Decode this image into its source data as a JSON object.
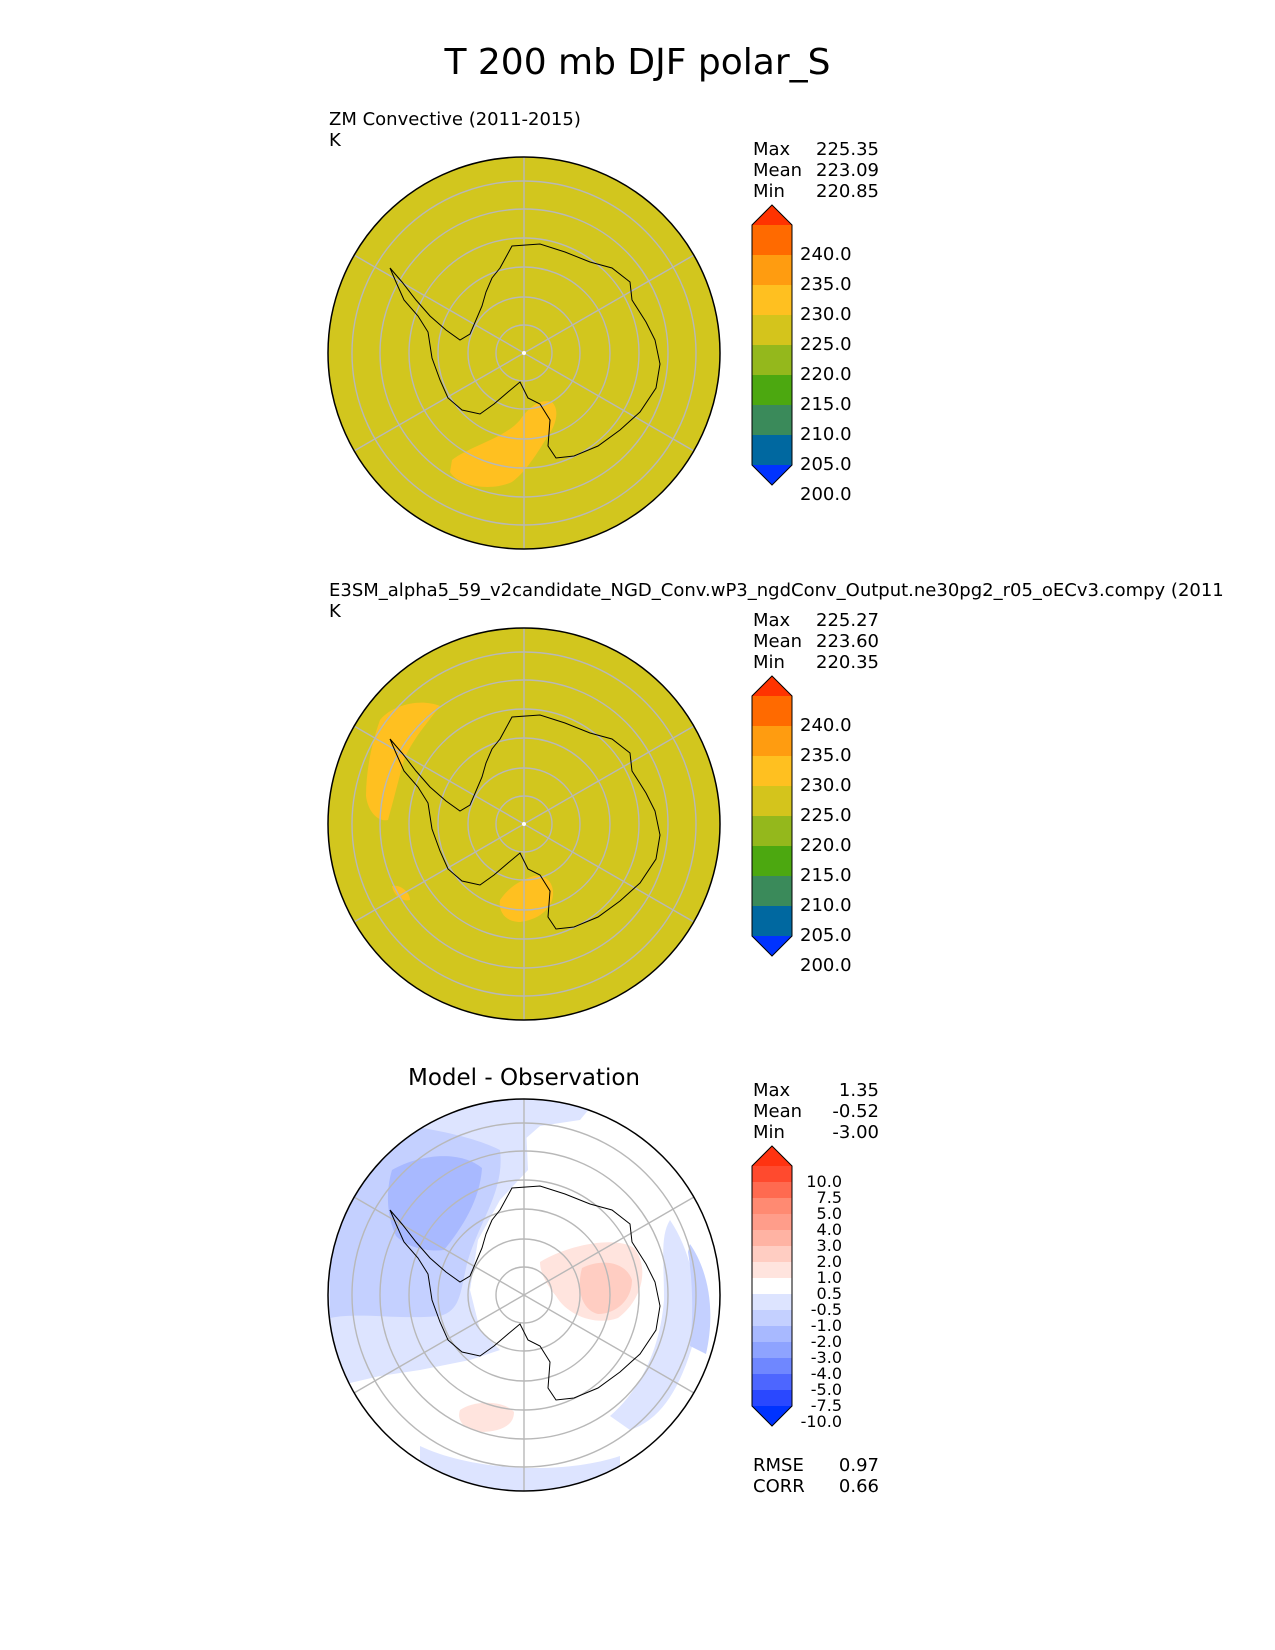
{
  "chart_data": {
    "title": "T 200 mb DJF polar_S",
    "type": "heatmap",
    "projection": "south polar stereographic",
    "panels": [
      {
        "name": "test",
        "title": "ZM Convective (2011-2015)",
        "units": "K",
        "stats": [
          {
            "label": "Max",
            "value": "225.35"
          },
          {
            "label": "Mean",
            "value": "223.09"
          },
          {
            "label": "Min",
            "value": "220.85"
          }
        ],
        "levels": [
          "240.0",
          "235.0",
          "230.0",
          "225.0",
          "220.0",
          "215.0",
          "210.0",
          "205.0",
          "200.0"
        ],
        "colors": [
          "#ff3300",
          "#ff6a00",
          "#ff9c10",
          "#ffc020",
          "#d4c41c",
          "#94b81c",
          "#4ca810",
          "#3a8a5a",
          "#0068a0",
          "#0033ff"
        ]
      },
      {
        "name": "reference",
        "title": "E3SM_alpha5_59_v2candidate_NGD_Conv.wP3_ngdConv_Output.ne30pg2_r05_oECv3.compy (2011",
        "units": "K",
        "stats": [
          {
            "label": "Max",
            "value": "225.27"
          },
          {
            "label": "Mean",
            "value": "223.60"
          },
          {
            "label": "Min",
            "value": "220.35"
          }
        ],
        "levels": [
          "240.0",
          "235.0",
          "230.0",
          "225.0",
          "220.0",
          "215.0",
          "210.0",
          "205.0",
          "200.0"
        ],
        "colors": [
          "#ff3300",
          "#ff6a00",
          "#ff9c10",
          "#ffc020",
          "#d4c41c",
          "#94b81c",
          "#4ca810",
          "#3a8a5a",
          "#0068a0",
          "#0033ff"
        ]
      },
      {
        "name": "difference",
        "title": "Model - Observation",
        "units": "",
        "stats": [
          {
            "label": "Max",
            "value": "1.35"
          },
          {
            "label": "Mean",
            "value": "-0.52"
          },
          {
            "label": "Min",
            "value": "-3.00"
          }
        ],
        "levels": [
          "10.0",
          "7.5",
          "5.0",
          "4.0",
          "3.0",
          "2.0",
          "1.0",
          "0.5",
          "-0.5",
          "-1.0",
          "-2.0",
          "-3.0",
          "-4.0",
          "-5.0",
          "-7.5",
          "-10.0"
        ],
        "colors": [
          "#ff3311",
          "#ff4a2e",
          "#ff6a50",
          "#ff8a72",
          "#ff9d8a",
          "#ffb3a3",
          "#ffcdc2",
          "#ffe4de",
          "#ffffff",
          "#dde4ff",
          "#c4d0ff",
          "#a8b9ff",
          "#8ea3ff",
          "#6f87ff",
          "#4d66ff",
          "#2a48ff",
          "#0033ff"
        ],
        "metrics": [
          {
            "label": "RMSE",
            "value": "0.97"
          },
          {
            "label": "CORR",
            "value": "0.66"
          }
        ]
      }
    ]
  }
}
